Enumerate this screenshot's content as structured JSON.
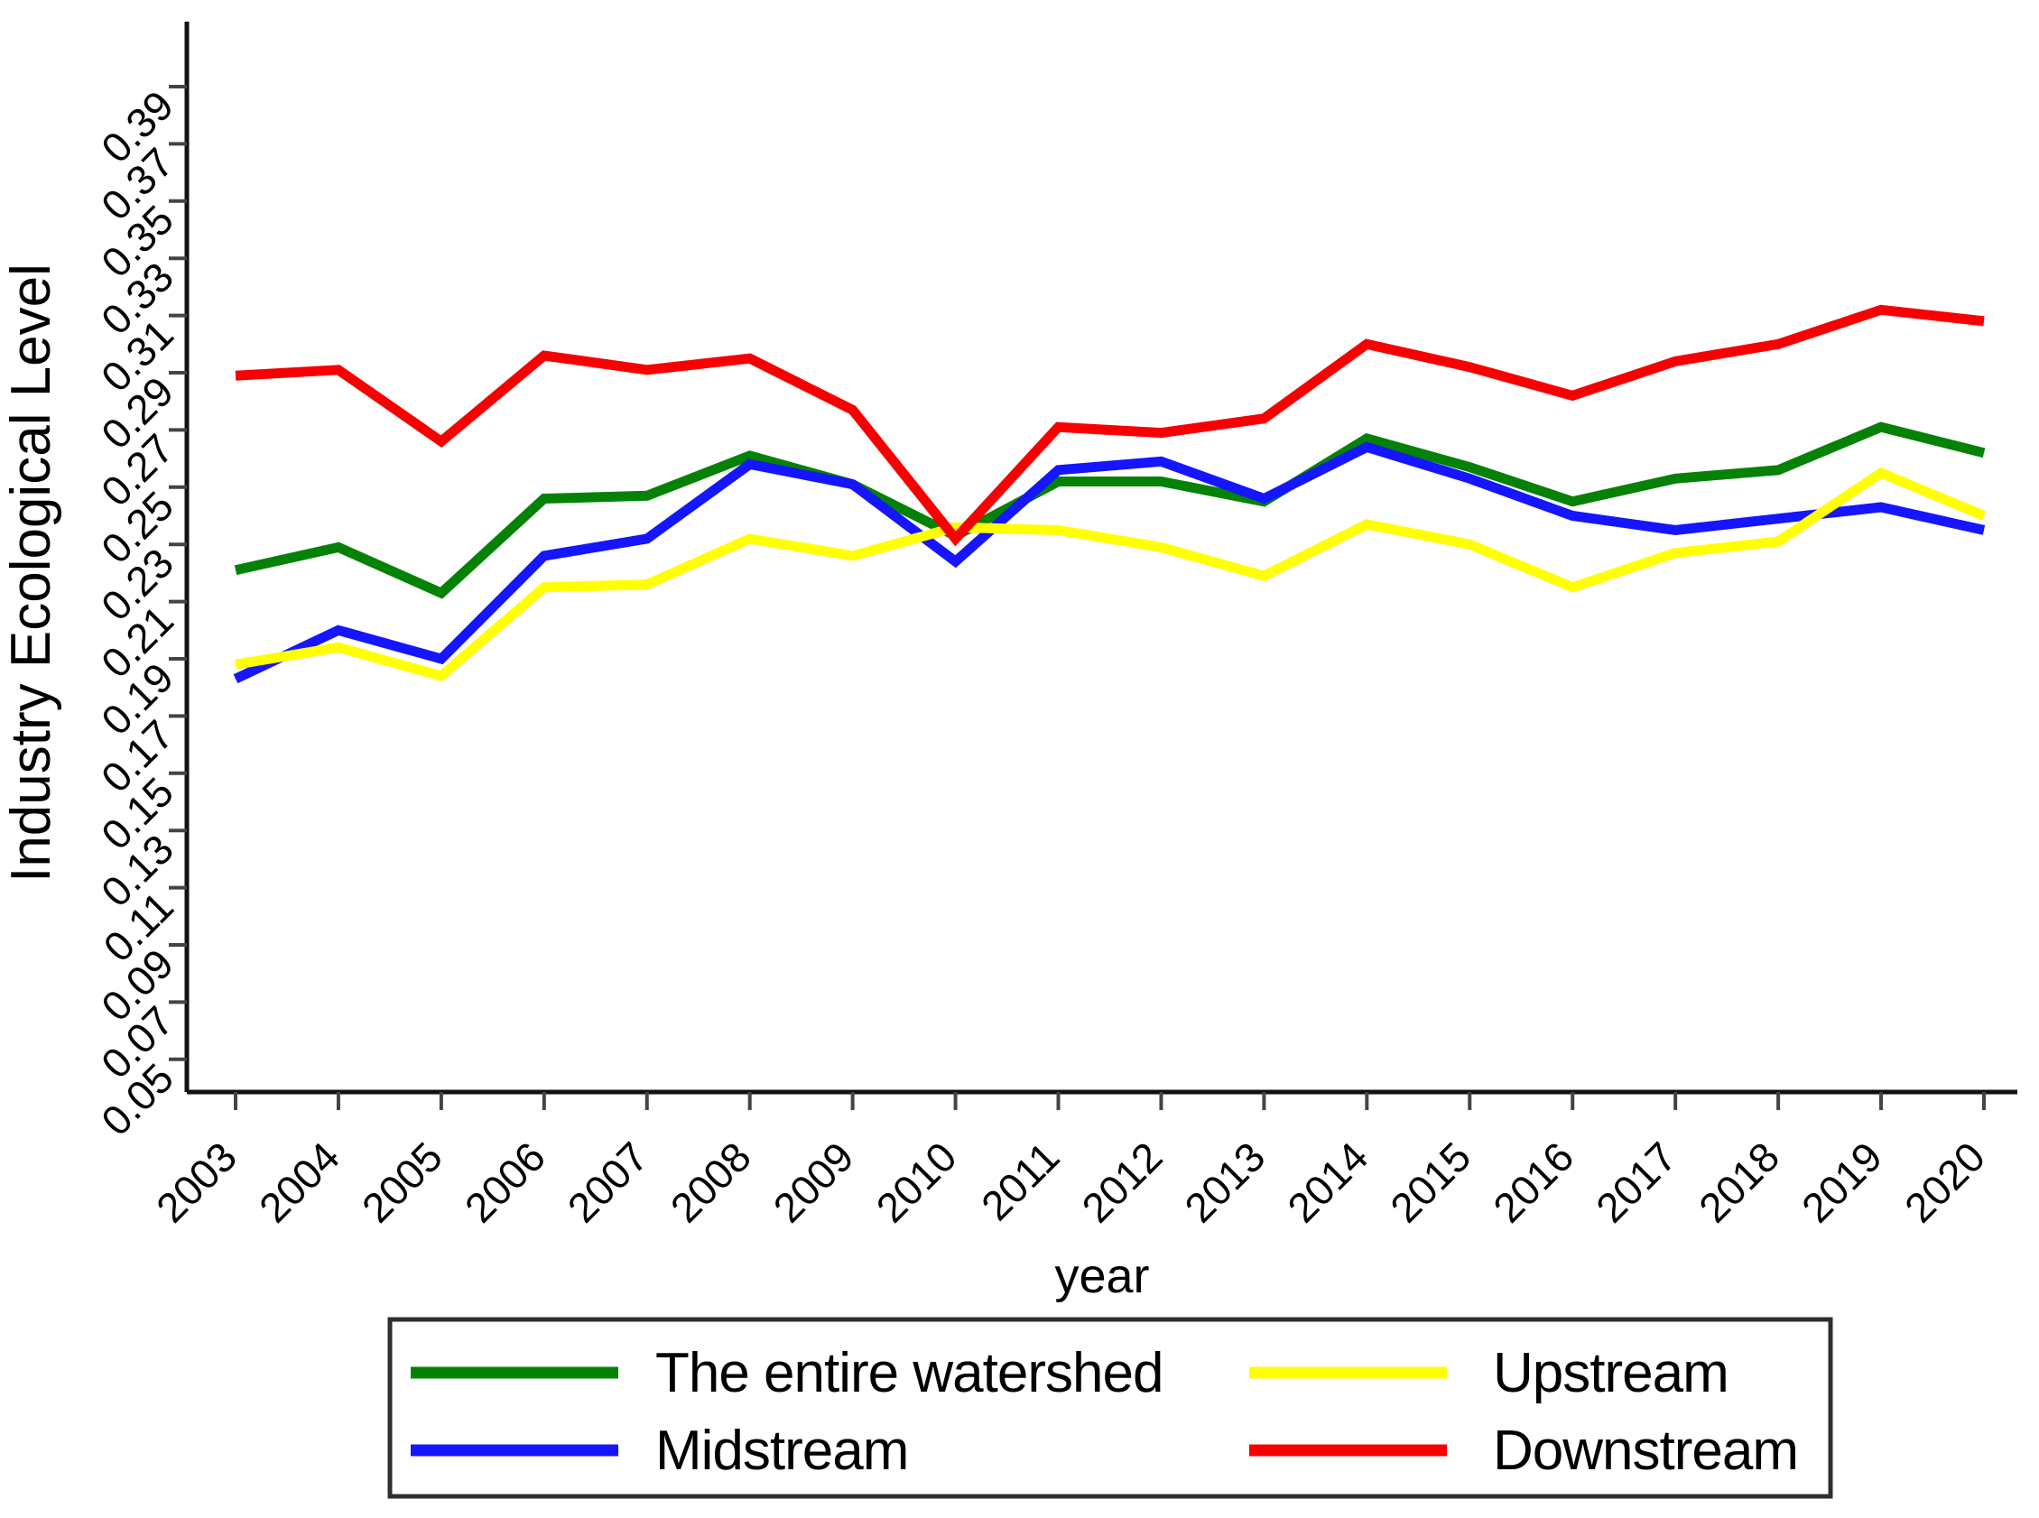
{
  "page": {
    "background": "#ffffff"
  },
  "chart_data": {
    "type": "line",
    "title": "",
    "xlabel": "year",
    "ylabel": "Industry Ecological Level",
    "x": [
      2003,
      2004,
      2005,
      2006,
      2007,
      2008,
      2009,
      2010,
      2011,
      2012,
      2013,
      2014,
      2015,
      2016,
      2017,
      2018,
      2019,
      2020
    ],
    "xticks": [
      2003,
      2004,
      2005,
      2006,
      2007,
      2008,
      2009,
      2010,
      2011,
      2012,
      2013,
      2014,
      2015,
      2016,
      2017,
      2018,
      2019,
      2020
    ],
    "yticks": [
      0.05,
      0.07,
      0.09,
      0.11,
      0.13,
      0.15,
      0.17,
      0.19,
      0.21,
      0.23,
      0.25,
      0.27,
      0.29,
      0.31,
      0.33,
      0.35,
      0.37,
      0.39
    ],
    "ylim": [
      0.05,
      0.39
    ],
    "grid": false,
    "tick_label_angle_deg": 45,
    "legend": {
      "position": "bottom",
      "boxed": true,
      "rows": 2,
      "columns": 2
    },
    "series": [
      {
        "name": "The entire watershed",
        "color": "#058205",
        "values": [
          0.221,
          0.229,
          0.213,
          0.246,
          0.247,
          0.261,
          0.251,
          0.233,
          0.252,
          0.252,
          0.245,
          0.267,
          0.257,
          0.245,
          0.253,
          0.256,
          0.271,
          0.262
        ]
      },
      {
        "name": "Midstream",
        "color": "#1515ff",
        "values": [
          0.183,
          0.2,
          0.19,
          0.226,
          0.232,
          0.258,
          0.251,
          0.224,
          0.256,
          0.259,
          0.246,
          0.264,
          0.253,
          0.24,
          0.235,
          0.239,
          0.243,
          0.235
        ]
      },
      {
        "name": "Upstream",
        "color": "#ffff00",
        "values": [
          0.188,
          0.194,
          0.184,
          0.215,
          0.216,
          0.232,
          0.226,
          0.236,
          0.235,
          0.229,
          0.219,
          0.237,
          0.23,
          0.215,
          0.227,
          0.231,
          0.255,
          0.24
        ]
      },
      {
        "name": "Downstream",
        "color": "#f80000",
        "values": [
          0.289,
          0.291,
          0.266,
          0.296,
          0.291,
          0.295,
          0.277,
          0.232,
          0.271,
          0.269,
          0.274,
          0.3,
          0.292,
          0.282,
          0.294,
          0.3,
          0.312,
          0.308
        ]
      }
    ]
  },
  "style": {
    "axis_color": "#111111",
    "tick_color": "#444444",
    "legend_border_color": "#2e2e2e",
    "legend_background": "#ffffff"
  }
}
